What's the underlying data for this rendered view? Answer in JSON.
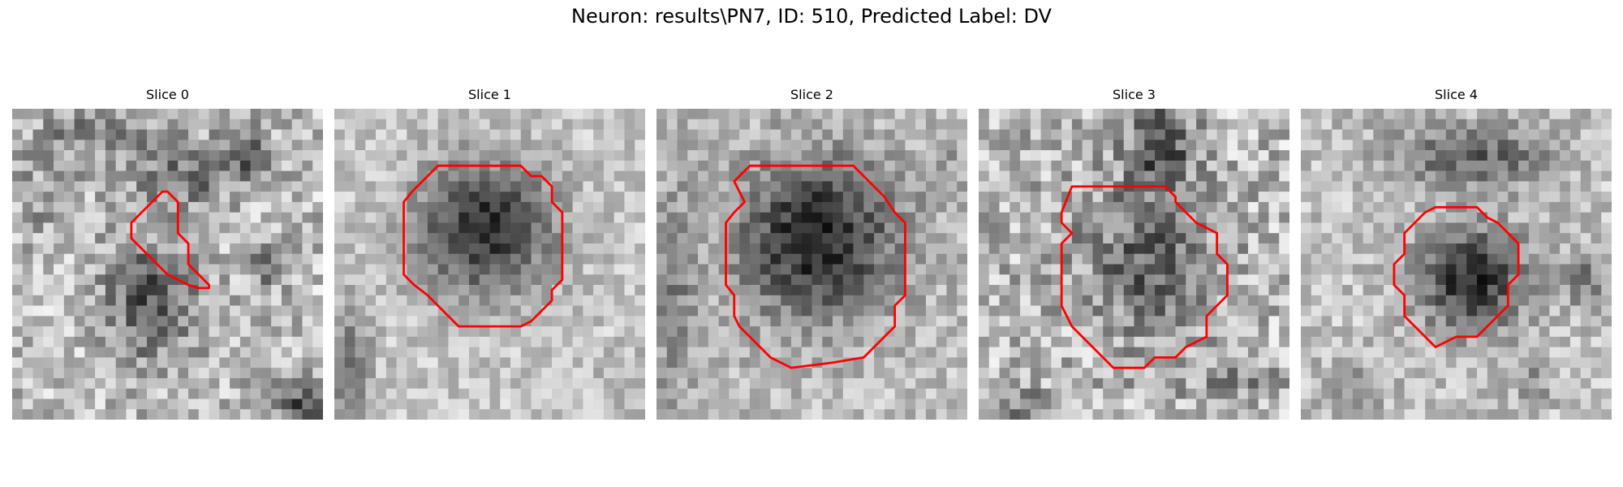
{
  "figure": {
    "title": "Neuron: results\\PN7, ID: 510, Predicted Label: DV"
  },
  "slices": [
    {
      "title": "Slice 0"
    },
    {
      "title": "Slice 1"
    },
    {
      "title": "Slice 2"
    },
    {
      "title": "Slice 3"
    },
    {
      "title": "Slice 4"
    }
  ],
  "colors": {
    "contour": "#ff0000",
    "background": "#ffffff"
  }
}
